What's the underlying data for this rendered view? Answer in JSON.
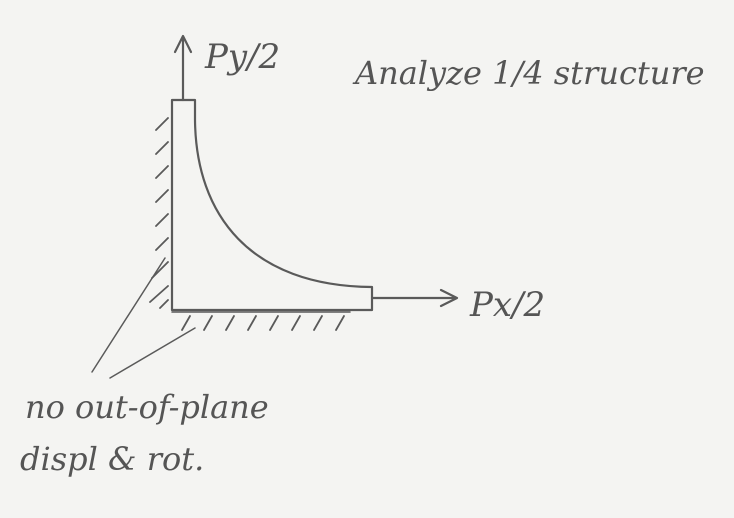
{
  "labels": {
    "py": "Py/2",
    "px": "Px/2",
    "note": "Analyze 1/4 structure",
    "bc": [
      "no out-of-plane",
      "displ & rot."
    ]
  }
}
